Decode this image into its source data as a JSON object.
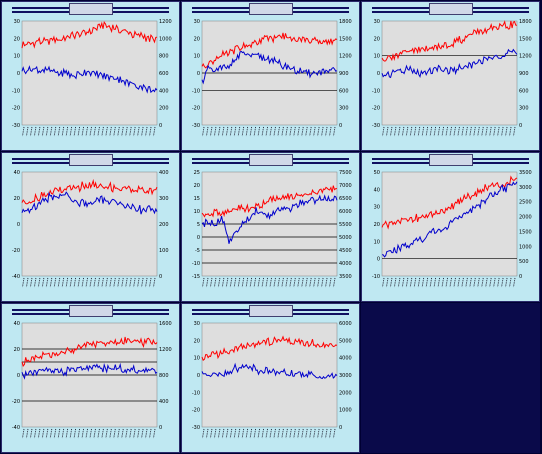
{
  "colors": {
    "background": "#000033",
    "panel": "#bfe8f2",
    "plot": "#dedede",
    "series_a": "#ff0000",
    "series_b": "#0000cc",
    "title_bar": "#101060"
  },
  "chart_data": [
    {
      "type": "line",
      "title": "",
      "left_axis": {
        "range": [
          -30,
          30
        ],
        "ticks": [
          "30",
          "20",
          "10",
          "0",
          "-10",
          "-20",
          "-30"
        ]
      },
      "right_axis": {
        "range": [
          0,
          1200
        ],
        "ticks": [
          "1200",
          "1000",
          "800",
          "600",
          "400",
          "200",
          "0"
        ]
      },
      "hlines": [],
      "series": [
        {
          "axis": "right",
          "color": "#ff0000",
          "points": [
            [
              0,
              920
            ],
            [
              10,
              960
            ],
            [
              20,
              980
            ],
            [
              30,
              1000
            ],
            [
              40,
              1040
            ],
            [
              50,
              1080
            ],
            [
              60,
              1150
            ],
            [
              70,
              1110
            ],
            [
              80,
              1060
            ],
            [
              90,
              1020
            ],
            [
              100,
              980
            ]
          ]
        },
        {
          "axis": "left",
          "color": "#0000cc",
          "points": [
            [
              0,
              1
            ],
            [
              10,
              2
            ],
            [
              20,
              1
            ],
            [
              30,
              0
            ],
            [
              40,
              -1
            ],
            [
              50,
              1
            ],
            [
              60,
              -2
            ],
            [
              70,
              -3
            ],
            [
              80,
              -6
            ],
            [
              90,
              -8
            ],
            [
              100,
              -11
            ]
          ]
        }
      ]
    },
    {
      "type": "line",
      "title": "",
      "left_axis": {
        "range": [
          -30,
          30
        ],
        "ticks": [
          "30",
          "20",
          "10",
          "0",
          "-10",
          "-20",
          "-30"
        ]
      },
      "right_axis": {
        "range": [
          0,
          1800
        ],
        "ticks": [
          "1800",
          "1500",
          "1200",
          "900",
          "600",
          "300",
          "0"
        ]
      },
      "hlines": [
        0,
        -10
      ],
      "series": [
        {
          "axis": "right",
          "color": "#ff0000",
          "points": [
            [
              0,
              1000
            ],
            [
              10,
              1150
            ],
            [
              20,
              1250
            ],
            [
              30,
              1350
            ],
            [
              40,
              1420
            ],
            [
              50,
              1500
            ],
            [
              60,
              1530
            ],
            [
              70,
              1500
            ],
            [
              80,
              1450
            ],
            [
              90,
              1430
            ],
            [
              100,
              1460
            ]
          ]
        },
        {
          "axis": "left",
          "color": "#0000cc",
          "points": [
            [
              0,
              -4
            ],
            [
              5,
              2
            ],
            [
              10,
              1
            ],
            [
              20,
              5
            ],
            [
              30,
              11
            ],
            [
              40,
              9
            ],
            [
              50,
              8
            ],
            [
              60,
              4
            ],
            [
              70,
              1
            ],
            [
              80,
              0
            ],
            [
              90,
              1
            ],
            [
              100,
              1
            ]
          ]
        }
      ]
    },
    {
      "type": "line",
      "title": "",
      "left_axis": {
        "range": [
          -30,
          30
        ],
        "ticks": [
          "30",
          "20",
          "10",
          "0",
          "-10",
          "-20",
          "-30"
        ]
      },
      "right_axis": {
        "range": [
          0,
          1800
        ],
        "ticks": [
          "1800",
          "1500",
          "1200",
          "900",
          "600",
          "300",
          "0"
        ]
      },
      "hlines": [
        10
      ],
      "series": [
        {
          "axis": "right",
          "color": "#ff0000",
          "points": [
            [
              0,
              1150
            ],
            [
              10,
              1200
            ],
            [
              20,
              1280
            ],
            [
              30,
              1300
            ],
            [
              40,
              1350
            ],
            [
              50,
              1400
            ],
            [
              60,
              1500
            ],
            [
              70,
              1600
            ],
            [
              80,
              1650
            ],
            [
              90,
              1700
            ],
            [
              100,
              1750
            ]
          ]
        },
        {
          "axis": "left",
          "color": "#0000cc",
          "points": [
            [
              0,
              -2
            ],
            [
              10,
              1
            ],
            [
              20,
              2
            ],
            [
              30,
              -1
            ],
            [
              40,
              3
            ],
            [
              50,
              1
            ],
            [
              60,
              4
            ],
            [
              70,
              6
            ],
            [
              80,
              9
            ],
            [
              90,
              10
            ],
            [
              100,
              12
            ]
          ]
        }
      ]
    },
    {
      "type": "line",
      "title": "",
      "left_axis": {
        "range": [
          -40,
          40
        ],
        "ticks": [
          "40",
          "20",
          "0",
          "-20",
          "-40"
        ]
      },
      "right_axis": {
        "range": [
          0,
          400
        ],
        "ticks": [
          "400",
          "300",
          "200",
          "100",
          "0"
        ]
      },
      "hlines": [],
      "series": [
        {
          "axis": "right",
          "color": "#ff0000",
          "points": [
            [
              0,
              280
            ],
            [
              10,
              300
            ],
            [
              20,
              320
            ],
            [
              30,
              330
            ],
            [
              40,
              340
            ],
            [
              50,
              350
            ],
            [
              60,
              345
            ],
            [
              70,
              340
            ],
            [
              80,
              335
            ],
            [
              90,
              330
            ],
            [
              100,
              330
            ]
          ]
        },
        {
          "axis": "left",
          "color": "#0000cc",
          "points": [
            [
              0,
              10
            ],
            [
              10,
              14
            ],
            [
              20,
              20
            ],
            [
              30,
              23
            ],
            [
              40,
              17
            ],
            [
              50,
              15
            ],
            [
              60,
              19
            ],
            [
              70,
              17
            ],
            [
              80,
              13
            ],
            [
              90,
              11
            ],
            [
              100,
              12
            ]
          ]
        }
      ]
    },
    {
      "type": "line",
      "title": "",
      "left_axis": {
        "range": [
          -15,
          25
        ],
        "ticks": [
          "25",
          "20",
          "15",
          "10",
          "5",
          "0",
          "-5",
          "-10",
          "-15"
        ]
      },
      "right_axis": {
        "range": [
          3500,
          7500
        ],
        "ticks": [
          "7500",
          "7000",
          "6500",
          "6000",
          "5500",
          "5000",
          "4500",
          "4000",
          "3500"
        ]
      },
      "hlines": [
        5,
        0,
        -5,
        -10
      ],
      "series": [
        {
          "axis": "right",
          "color": "#ff0000",
          "points": [
            [
              0,
              5800
            ],
            [
              10,
              5900
            ],
            [
              20,
              6000
            ],
            [
              30,
              6100
            ],
            [
              40,
              6200
            ],
            [
              50,
              6400
            ],
            [
              60,
              6500
            ],
            [
              70,
              6600
            ],
            [
              80,
              6700
            ],
            [
              90,
              6800
            ],
            [
              100,
              6900
            ]
          ]
        },
        {
          "axis": "left",
          "color": "#0000cc",
          "points": [
            [
              0,
              5
            ],
            [
              10,
              5
            ],
            [
              15,
              8
            ],
            [
              20,
              -2
            ],
            [
              30,
              5
            ],
            [
              40,
              10
            ],
            [
              50,
              8
            ],
            [
              60,
              11
            ],
            [
              70,
              12
            ],
            [
              80,
              14
            ],
            [
              90,
              15
            ],
            [
              100,
              14
            ]
          ]
        }
      ]
    },
    {
      "type": "line",
      "title": "",
      "left_axis": {
        "range": [
          -10,
          50
        ],
        "ticks": [
          "50",
          "40",
          "30",
          "20",
          "10",
          "0",
          "-10"
        ]
      },
      "right_axis": {
        "range": [
          0,
          3500
        ],
        "ticks": [
          "3500",
          "3000",
          "2500",
          "2000",
          "1500",
          "1000",
          "500",
          "0"
        ]
      },
      "hlines": [
        0
      ],
      "series": [
        {
          "axis": "right",
          "color": "#ff0000",
          "points": [
            [
              0,
              1700
            ],
            [
              10,
              1800
            ],
            [
              20,
              1900
            ],
            [
              30,
              2000
            ],
            [
              40,
              2100
            ],
            [
              50,
              2300
            ],
            [
              60,
              2600
            ],
            [
              70,
              2800
            ],
            [
              80,
              3000
            ],
            [
              90,
              3100
            ],
            [
              100,
              3300
            ]
          ]
        },
        {
          "axis": "left",
          "color": "#0000cc",
          "points": [
            [
              0,
              2
            ],
            [
              10,
              5
            ],
            [
              20,
              8
            ],
            [
              30,
              12
            ],
            [
              40,
              16
            ],
            [
              50,
              20
            ],
            [
              60,
              25
            ],
            [
              70,
              30
            ],
            [
              80,
              36
            ],
            [
              90,
              40
            ],
            [
              100,
              44
            ]
          ]
        }
      ]
    },
    {
      "type": "line",
      "title": "",
      "left_axis": {
        "range": [
          -40,
          40
        ],
        "ticks": [
          "40",
          "20",
          "0",
          "-20",
          "-40"
        ]
      },
      "right_axis": {
        "range": [
          0,
          1600
        ],
        "ticks": [
          "1600",
          "1200",
          "800",
          "400",
          "0"
        ]
      },
      "hlines": [
        20,
        10,
        0,
        -20
      ],
      "series": [
        {
          "axis": "right",
          "color": "#ff0000",
          "points": [
            [
              0,
              1000
            ],
            [
              10,
              1050
            ],
            [
              20,
              1100
            ],
            [
              30,
              1150
            ],
            [
              40,
              1200
            ],
            [
              50,
              1260
            ],
            [
              60,
              1300
            ],
            [
              70,
              1320
            ],
            [
              80,
              1310
            ],
            [
              90,
              1300
            ],
            [
              100,
              1280
            ]
          ]
        },
        {
          "axis": "left",
          "color": "#0000cc",
          "points": [
            [
              0,
              0
            ],
            [
              10,
              2
            ],
            [
              20,
              4
            ],
            [
              30,
              3
            ],
            [
              40,
              5
            ],
            [
              50,
              6
            ],
            [
              60,
              5
            ],
            [
              70,
              6
            ],
            [
              80,
              4
            ],
            [
              90,
              5
            ],
            [
              100,
              3
            ]
          ]
        }
      ]
    },
    {
      "type": "line",
      "title": "",
      "left_axis": {
        "range": [
          -30,
          30
        ],
        "ticks": [
          "30",
          "20",
          "10",
          "0",
          "-10",
          "-20",
          "-30"
        ]
      },
      "right_axis": {
        "range": [
          0,
          6000
        ],
        "ticks": [
          "6000",
          "5000",
          "4000",
          "3000",
          "2000",
          "1000",
          "0"
        ]
      },
      "hlines": [],
      "series": [
        {
          "axis": "right",
          "color": "#ff0000",
          "points": [
            [
              0,
              4000
            ],
            [
              10,
              4200
            ],
            [
              20,
              4400
            ],
            [
              30,
              4600
            ],
            [
              40,
              4800
            ],
            [
              50,
              4900
            ],
            [
              60,
              5000
            ],
            [
              70,
              4900
            ],
            [
              80,
              4800
            ],
            [
              90,
              4700
            ],
            [
              100,
              4600
            ]
          ]
        },
        {
          "axis": "left",
          "color": "#0000cc",
          "points": [
            [
              0,
              0
            ],
            [
              10,
              1
            ],
            [
              20,
              2
            ],
            [
              30,
              5
            ],
            [
              40,
              3
            ],
            [
              50,
              2
            ],
            [
              60,
              1
            ],
            [
              70,
              0
            ],
            [
              80,
              0
            ],
            [
              90,
              -1
            ],
            [
              100,
              0
            ]
          ]
        }
      ]
    }
  ]
}
